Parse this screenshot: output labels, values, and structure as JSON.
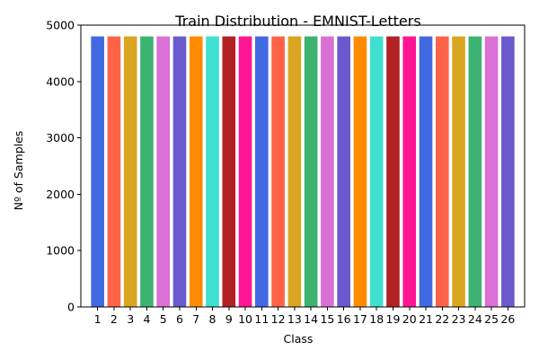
{
  "chart_data": {
    "type": "bar",
    "title": "Train Distribution - EMNIST-Letters",
    "xlabel": "Class",
    "ylabel": "Nº of Samples",
    "categories": [
      "1",
      "2",
      "3",
      "4",
      "5",
      "6",
      "7",
      "8",
      "9",
      "10",
      "11",
      "12",
      "13",
      "14",
      "15",
      "16",
      "17",
      "18",
      "19",
      "20",
      "21",
      "22",
      "23",
      "24",
      "25",
      "26"
    ],
    "values": [
      4800,
      4800,
      4800,
      4800,
      4800,
      4800,
      4800,
      4800,
      4800,
      4800,
      4800,
      4800,
      4800,
      4800,
      4800,
      4800,
      4800,
      4800,
      4800,
      4800,
      4800,
      4800,
      4800,
      4800,
      4800,
      4800
    ],
    "colors": [
      "#4169E1",
      "#FF6347",
      "#DAA520",
      "#3CB371",
      "#DA70D6",
      "#6A5ACD",
      "#FF8C00",
      "#40E0D0",
      "#B22222",
      "#FF1493",
      "#4169E1",
      "#FF6347",
      "#DAA520",
      "#3CB371",
      "#DA70D6",
      "#6A5ACD",
      "#FF8C00",
      "#40E0D0",
      "#B22222",
      "#FF1493",
      "#4169E1",
      "#FF6347",
      "#DAA520",
      "#3CB371",
      "#DA70D6",
      "#6A5ACD"
    ],
    "ylim": [
      0,
      5000
    ],
    "yticks": [
      0,
      1000,
      2000,
      3000,
      4000,
      5000
    ],
    "grid": false,
    "legend": "none"
  }
}
